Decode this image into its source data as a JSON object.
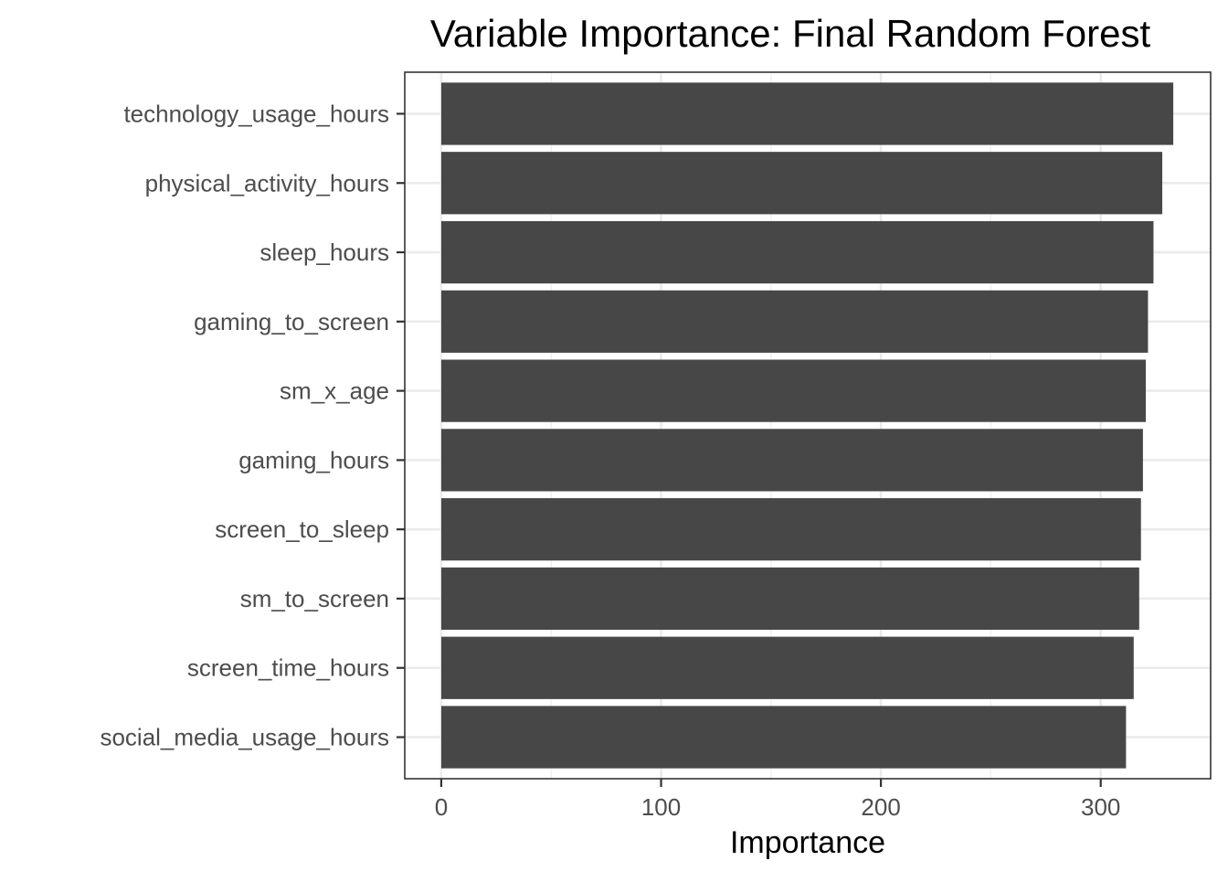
{
  "chart_data": {
    "type": "bar",
    "orientation": "horizontal",
    "title": "Variable Importance: Final Random Forest",
    "xlabel": "Importance",
    "ylabel": "",
    "xlim": [
      -16.6,
      350
    ],
    "x_ticks": [
      0,
      100,
      200,
      300
    ],
    "grid": true,
    "legend": "none",
    "bar_color": "#474747",
    "categories": [
      "technology_usage_hours",
      "physical_activity_hours",
      "sleep_hours",
      "gaming_to_screen",
      "sm_x_age",
      "gaming_hours",
      "screen_to_sleep",
      "sm_to_screen",
      "screen_time_hours",
      "social_media_usage_hours"
    ],
    "values": [
      333,
      328,
      324,
      321.5,
      320.5,
      319.2,
      318.3,
      317.5,
      315,
      311.5
    ]
  }
}
